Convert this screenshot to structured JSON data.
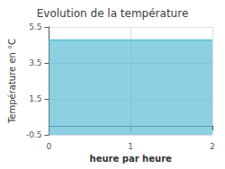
{
  "chart_data": {
    "type": "line",
    "title": "Evolution de la température",
    "xlabel": "heure par heure",
    "ylabel": "Température en °C",
    "x": [
      0,
      2
    ],
    "values": [
      4.78,
      4.78
    ],
    "color": "#5bbdd4",
    "xlim": [
      0,
      2
    ],
    "xticks": [
      0,
      1,
      2
    ],
    "ylim": [
      -0.5,
      5.5
    ],
    "yticks": [
      -0.5,
      1.5,
      3.5,
      5.5
    ],
    "grid": true
  }
}
